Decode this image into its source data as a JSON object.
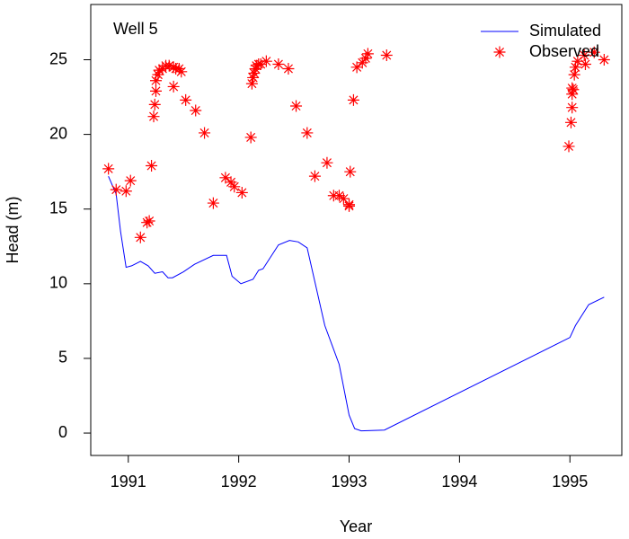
{
  "chart_data": {
    "type": "line",
    "title": "Well 5",
    "x_label": "Year",
    "y_label": "Head (m)",
    "xlim": [
      1990.66,
      1995.47
    ],
    "ylim": [
      -1.5,
      28.7
    ],
    "xticks": [
      1991,
      1992,
      1993,
      1994,
      1995
    ],
    "yticks": [
      0,
      5,
      10,
      15,
      20,
      25
    ],
    "legend": "top-right",
    "grid": false,
    "series": [
      {
        "name": "Simulated",
        "style": "line",
        "color": "#0000ff",
        "x": [
          1990.82,
          1990.89,
          1990.93,
          1990.98,
          1991.03,
          1991.11,
          1991.18,
          1991.24,
          1991.31,
          1991.36,
          1991.4,
          1991.5,
          1991.6,
          1991.77,
          1991.89,
          1991.94,
          1992.02,
          1992.13,
          1992.18,
          1992.22,
          1992.36,
          1992.46,
          1992.54,
          1992.62,
          1992.78,
          1992.91,
          1993.0,
          1993.05,
          1993.11,
          1993.32,
          1995.0,
          1995.05,
          1995.17,
          1995.31
        ],
        "values": [
          17.2,
          16.0,
          13.5,
          11.1,
          11.2,
          11.5,
          11.2,
          10.7,
          10.8,
          10.4,
          10.4,
          10.8,
          11.3,
          11.9,
          11.9,
          10.5,
          10.0,
          10.3,
          10.9,
          11.0,
          12.6,
          12.9,
          12.8,
          12.4,
          7.2,
          4.6,
          1.2,
          0.3,
          0.15,
          0.2,
          6.4,
          7.2,
          8.6,
          9.1
        ]
      },
      {
        "name": "Observed",
        "style": "points",
        "color": "#ff0000",
        "x": [
          1990.82,
          1990.89,
          1990.98,
          1991.02,
          1991.11,
          1991.17,
          1991.19,
          1991.21,
          1991.23,
          1991.24,
          1991.25,
          1991.25,
          1991.27,
          1991.28,
          1991.31,
          1991.34,
          1991.37,
          1991.41,
          1991.43,
          1991.46,
          1991.48,
          1991.41,
          1991.52,
          1991.61,
          1991.69,
          1991.77,
          1991.88,
          1991.93,
          1991.96,
          1992.03,
          1992.11,
          1992.12,
          1992.13,
          1992.14,
          1992.15,
          1992.16,
          1992.18,
          1992.2,
          1992.25,
          1992.36,
          1992.45,
          1992.52,
          1992.62,
          1992.69,
          1992.8,
          1992.86,
          1992.91,
          1992.95,
          1993.0,
          1993.0,
          1993.01,
          1993.04,
          1993.07,
          1993.12,
          1993.15,
          1993.17,
          1993.34,
          1994.99,
          1995.01,
          1995.02,
          1995.02,
          1995.02,
          1995.03,
          1995.04,
          1995.05,
          1995.07,
          1995.13,
          1995.14,
          1995.22,
          1995.31
        ],
        "values": [
          17.7,
          16.3,
          16.2,
          16.9,
          13.1,
          14.1,
          14.2,
          17.9,
          21.2,
          22.0,
          22.9,
          23.6,
          24.0,
          24.3,
          24.4,
          24.6,
          24.6,
          24.5,
          24.4,
          24.4,
          24.2,
          23.2,
          22.3,
          21.6,
          20.1,
          15.4,
          17.1,
          16.8,
          16.5,
          16.1,
          19.8,
          23.4,
          23.8,
          24.1,
          24.4,
          24.6,
          24.7,
          24.7,
          24.9,
          24.7,
          24.4,
          21.9,
          20.1,
          17.2,
          18.1,
          15.9,
          15.9,
          15.7,
          15.3,
          15.2,
          17.5,
          22.3,
          24.5,
          24.8,
          25.1,
          25.4,
          25.3,
          19.2,
          20.8,
          21.8,
          22.7,
          23.1,
          23.0,
          24.0,
          24.5,
          24.9,
          25.3,
          24.7,
          25.5,
          25.0
        ]
      }
    ]
  }
}
